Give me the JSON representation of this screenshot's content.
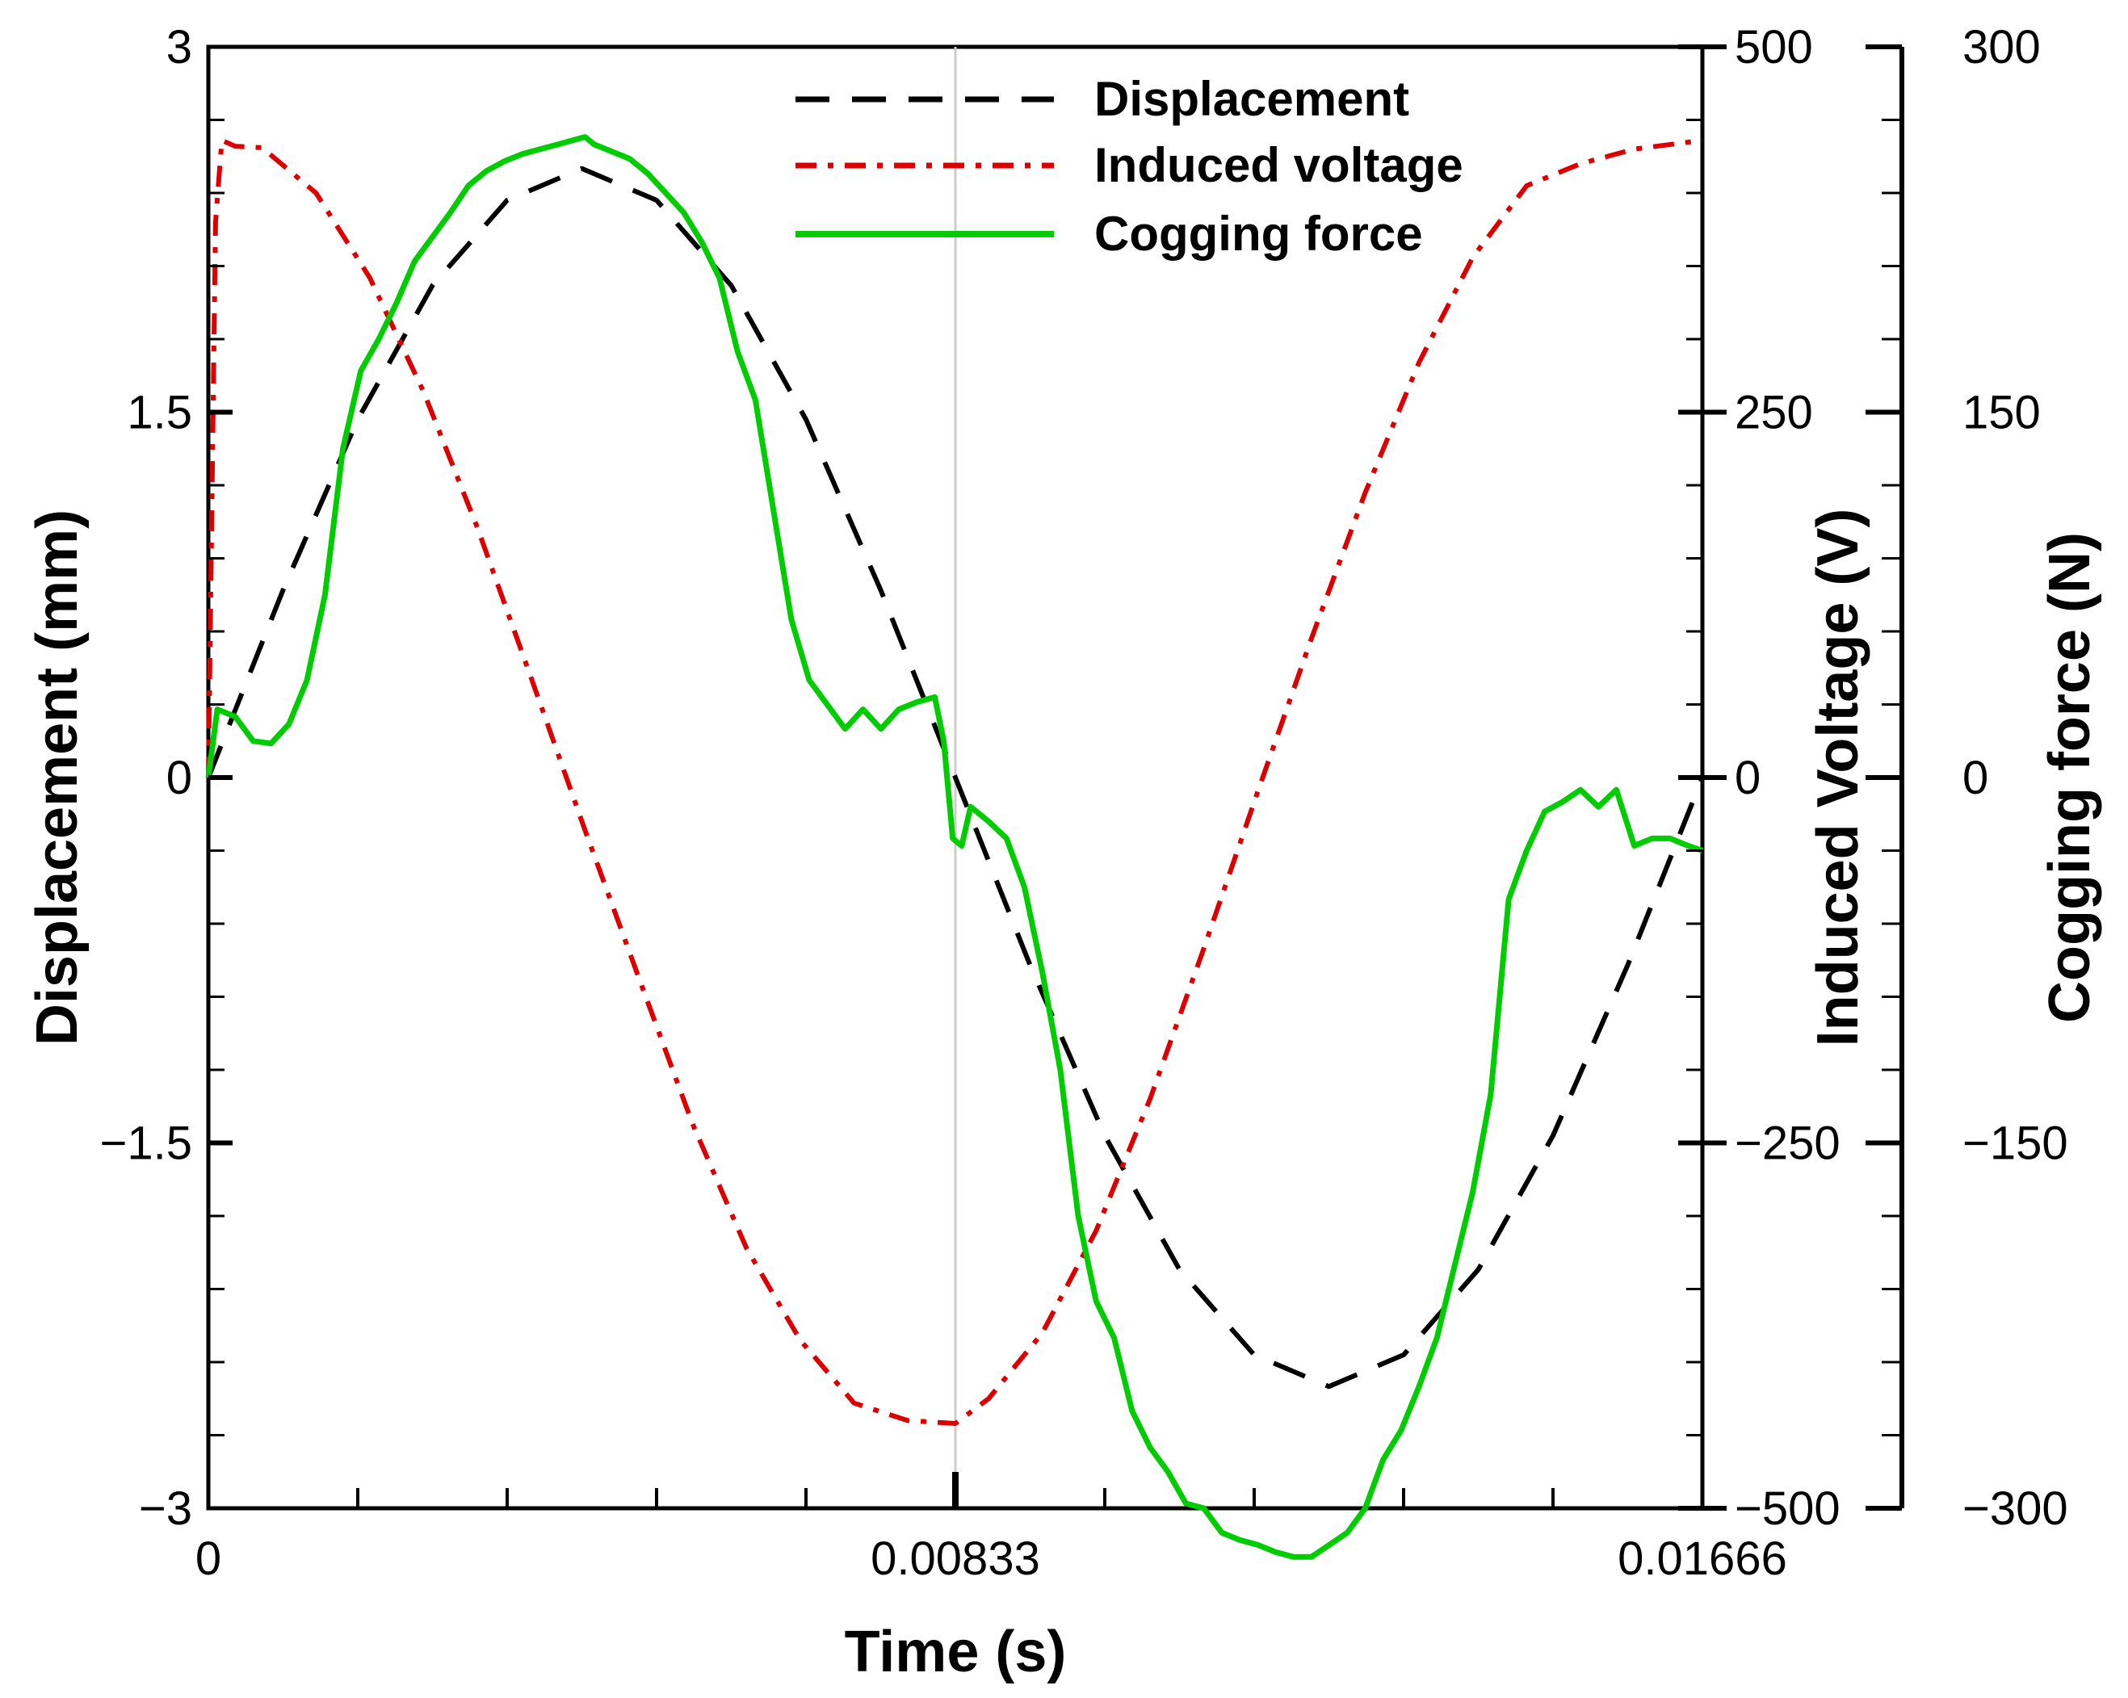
{
  "chart_data": {
    "type": "line",
    "xlabel": "Time (s)",
    "ylabel_left": "Displacement (mm)",
    "ylabel_right1": "Induced Voltage (V)",
    "ylabel_right2": "Cogging force (N)",
    "xlim": [
      0,
      0.01666
    ],
    "ylim_left": [
      -3,
      3
    ],
    "ylim_right1": [
      -500,
      500
    ],
    "ylim_right2": [
      -300,
      300
    ],
    "x_ticks": [
      0,
      0.00833,
      0.01666
    ],
    "x_tick_labels": [
      "0",
      "0.00833",
      "0.01666"
    ],
    "left_ticks": [
      -3,
      -1.5,
      0,
      1.5,
      3
    ],
    "left_tick_labels": [
      "−3",
      "−1.5",
      "0",
      "1.5",
      "3"
    ],
    "right1_ticks": [
      -500,
      -250,
      0,
      250,
      500
    ],
    "right1_tick_labels": [
      "−500",
      "−250",
      "0",
      "250",
      "500"
    ],
    "right2_ticks": [
      -300,
      -150,
      0,
      150,
      300
    ],
    "right2_tick_labels": [
      "−300",
      "−150",
      "0",
      "150",
      "300"
    ],
    "grid": false,
    "vertical_reference_line_x": 0.00833,
    "legend_position": "top-center",
    "series": [
      {
        "name": "Displacement",
        "axis": "left",
        "color": "#000000",
        "style": "dashed",
        "x": [
          0,
          0.000833,
          0.001666,
          0.002499,
          0.003332,
          0.004165,
          0.004998,
          0.005831,
          0.006664,
          0.007497,
          0.00833,
          0.009163,
          0.009996,
          0.010829,
          0.011662,
          0.012495,
          0.013328,
          0.014161,
          0.014994,
          0.015827,
          0.01666
        ],
        "y": [
          0,
          0.77,
          1.47,
          2.02,
          2.37,
          2.5,
          2.37,
          2.02,
          1.47,
          0.77,
          0,
          -0.77,
          -1.47,
          -2.02,
          -2.37,
          -2.5,
          -2.37,
          -2.02,
          -1.47,
          -0.77,
          0
        ]
      },
      {
        "name": "Induced voltage",
        "axis": "right1",
        "color": "#dd0000",
        "style": "dash-dot",
        "x": [
          0,
          8e-05,
          0.00015,
          0.0003,
          0.0006,
          0.0012,
          0.0018,
          0.0024,
          0.003,
          0.0036,
          0.0042,
          0.0048,
          0.0054,
          0.006,
          0.0066,
          0.0072,
          0.0078,
          0.00833,
          0.0087,
          0.0093,
          0.0099,
          0.0105,
          0.0111,
          0.0117,
          0.0123,
          0.0129,
          0.0135,
          0.0141,
          0.0147,
          0.0153,
          0.0159,
          0.01666
        ],
        "y": [
          0,
          380,
          436,
          432,
          431,
          400,
          342,
          264,
          171,
          68,
          -36,
          -137,
          -237,
          -322,
          -385,
          -428,
          -440,
          -442,
          -425,
          -380,
          -310,
          -220,
          -117,
          -10,
          95,
          195,
          284,
          356,
          405,
          420,
          430,
          436
        ]
      },
      {
        "name": "Cogging force",
        "axis": "right2",
        "color": "#00cc00",
        "style": "solid",
        "x": [
          0,
          0.0001,
          0.0003,
          0.0005,
          0.0007,
          0.0009,
          0.0011,
          0.0013,
          0.0015,
          0.0017,
          0.0019,
          0.0021,
          0.0023,
          0.0025,
          0.0027,
          0.0029,
          0.0031,
          0.0033,
          0.0035,
          0.0037,
          0.0039,
          0.0041,
          0.0042,
          0.0043,
          0.0045,
          0.0047,
          0.0049,
          0.0051,
          0.0053,
          0.0055,
          0.0057,
          0.0059,
          0.0061,
          0.0063,
          0.0065,
          0.0067,
          0.0069,
          0.0071,
          0.0073,
          0.0075,
          0.0077,
          0.0079,
          0.0081,
          0.0082,
          0.0083,
          0.0084,
          0.0085,
          0.0087,
          0.0089,
          0.0091,
          0.0093,
          0.0095,
          0.0097,
          0.0099,
          0.0101,
          0.0103,
          0.0105,
          0.0107,
          0.0109,
          0.0111,
          0.0113,
          0.0115,
          0.0117,
          0.0119,
          0.0121,
          0.0123,
          0.0125,
          0.0127,
          0.0129,
          0.0131,
          0.0133,
          0.0135,
          0.0137,
          0.0139,
          0.0141,
          0.0143,
          0.0145,
          0.0147,
          0.0149,
          0.0151,
          0.0153,
          0.0155,
          0.0157,
          0.0159,
          0.0161,
          0.0163,
          0.0165,
          0.01666
        ],
        "y": [
          0,
          28,
          25,
          15,
          14,
          22,
          40,
          75,
          135,
          167,
          180,
          195,
          212,
          222,
          232,
          243,
          249,
          253,
          256,
          258,
          260,
          262,
          263,
          260,
          257,
          254,
          248,
          240,
          232,
          220,
          205,
          175,
          155,
          110,
          65,
          40,
          30,
          20,
          28,
          20,
          28,
          31,
          33,
          15,
          -25,
          -28,
          -12,
          -18,
          -25,
          -45,
          -80,
          -120,
          -180,
          -215,
          -230,
          -260,
          -275,
          -285,
          -298,
          -300,
          -310,
          -313,
          -315,
          -318,
          -320,
          -320,
          -315,
          -310,
          -300,
          -280,
          -268,
          -250,
          -230,
          -200,
          -170,
          -130,
          -50,
          -30,
          -14,
          -10,
          -5,
          -12,
          -5,
          -28,
          -25,
          -25,
          -28,
          -30
        ]
      }
    ]
  }
}
